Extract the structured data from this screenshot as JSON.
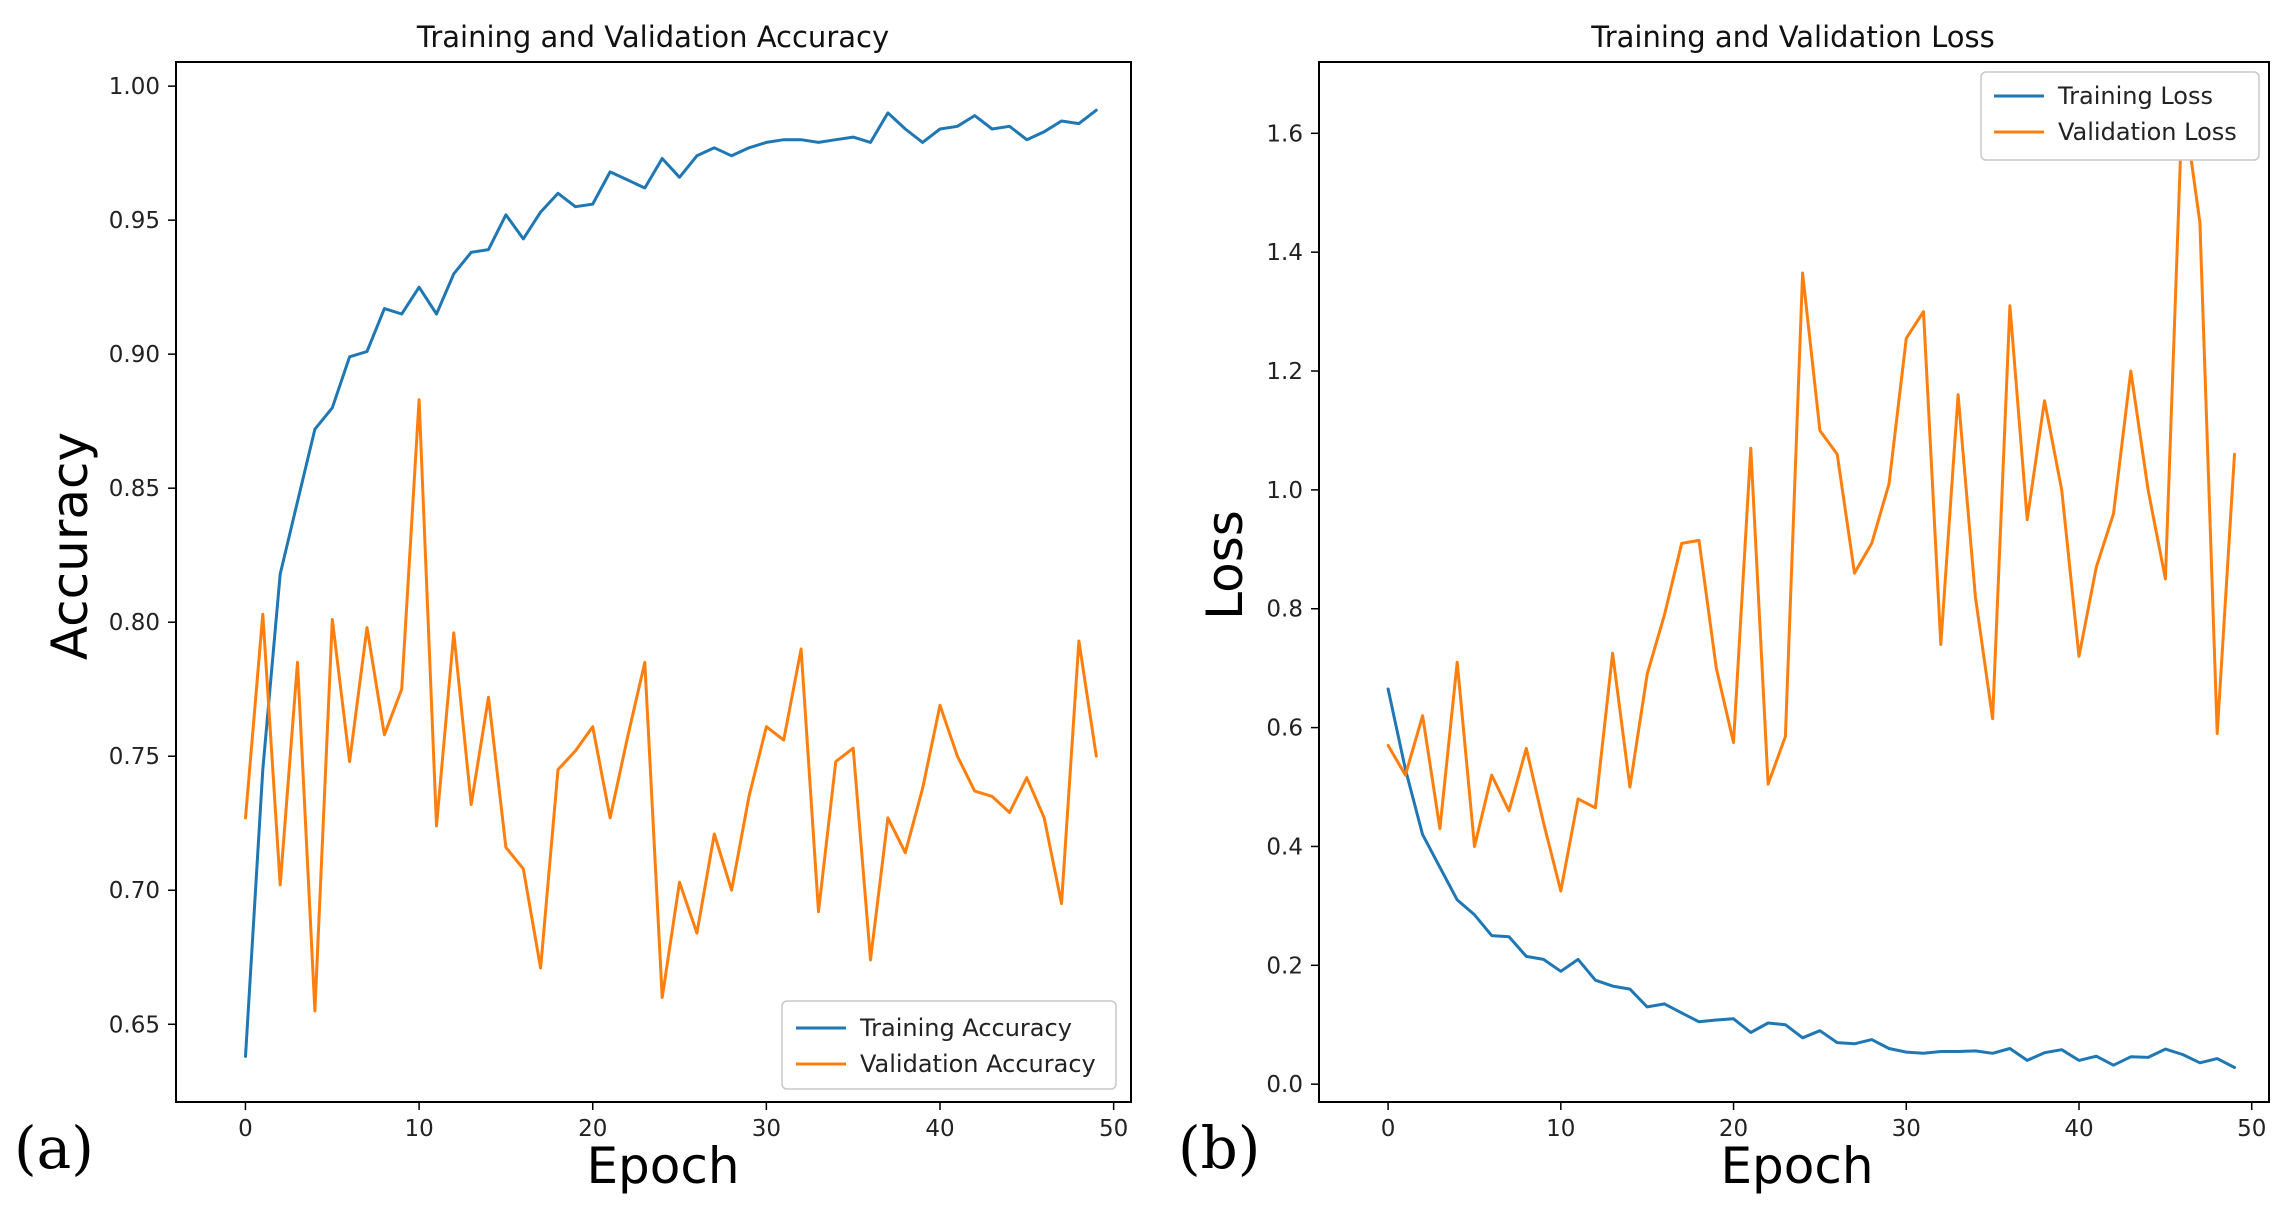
{
  "chart_data": [
    {
      "type": "line",
      "panel_label": "(a)",
      "title": "Training and Validation Accuracy",
      "xlabel": "Epoch",
      "ylabel": "Accuracy",
      "xlim": [
        -4,
        51
      ],
      "ylim": [
        0.621,
        1.009
      ],
      "xticks": [
        0,
        10,
        20,
        30,
        40,
        50
      ],
      "yticks": [
        0.65,
        0.7,
        0.75,
        0.8,
        0.85,
        0.9,
        0.95,
        1.0
      ],
      "ytick_labels": [
        "0.65",
        "0.70",
        "0.75",
        "0.80",
        "0.85",
        "0.90",
        "0.95",
        "1.00"
      ],
      "legend": "lower right",
      "series": [
        {
          "name": "Training Accuracy",
          "color": "#1f77b4",
          "values": [
            0.638,
            0.745,
            0.818,
            0.845,
            0.872,
            0.88,
            0.899,
            0.901,
            0.917,
            0.915,
            0.925,
            0.915,
            0.93,
            0.938,
            0.939,
            0.952,
            0.943,
            0.953,
            0.96,
            0.955,
            0.956,
            0.968,
            0.965,
            0.962,
            0.973,
            0.966,
            0.974,
            0.977,
            0.974,
            0.977,
            0.979,
            0.98,
            0.98,
            0.979,
            0.98,
            0.981,
            0.979,
            0.99,
            0.984,
            0.979,
            0.984,
            0.985,
            0.989,
            0.984,
            0.985,
            0.98,
            0.983,
            0.987,
            0.986,
            0.991
          ]
        },
        {
          "name": "Validation Accuracy",
          "color": "#ff7f0e",
          "values": [
            0.727,
            0.803,
            0.702,
            0.785,
            0.655,
            0.801,
            0.748,
            0.798,
            0.758,
            0.775,
            0.883,
            0.724,
            0.796,
            0.732,
            0.772,
            0.716,
            0.708,
            0.671,
            0.745,
            0.752,
            0.761,
            0.727,
            0.757,
            0.785,
            0.66,
            0.703,
            0.684,
            0.721,
            0.7,
            0.735,
            0.761,
            0.756,
            0.79,
            0.692,
            0.748,
            0.753,
            0.674,
            0.727,
            0.714,
            0.738,
            0.769,
            0.75,
            0.737,
            0.735,
            0.729,
            0.742,
            0.727,
            0.695,
            0.793,
            0.75
          ]
        }
      ]
    },
    {
      "type": "line",
      "panel_label": "(b)",
      "title": "Training and Validation Loss",
      "xlabel": "Epoch",
      "ylabel": "Loss",
      "xlim": [
        -4,
        51
      ],
      "ylim": [
        -0.03,
        1.72
      ],
      "xticks": [
        0,
        10,
        20,
        30,
        40,
        50
      ],
      "yticks": [
        0.0,
        0.2,
        0.4,
        0.6,
        0.8,
        1.0,
        1.2,
        1.4,
        1.6
      ],
      "ytick_labels": [
        "0.0",
        "0.2",
        "0.4",
        "0.6",
        "0.8",
        "1.0",
        "1.2",
        "1.4",
        "1.6"
      ],
      "legend": "upper right",
      "series": [
        {
          "name": "Training Loss",
          "color": "#1f77b4",
          "values": [
            0.665,
            0.53,
            0.42,
            0.365,
            0.31,
            0.285,
            0.25,
            0.248,
            0.215,
            0.21,
            0.19,
            0.21,
            0.175,
            0.165,
            0.16,
            0.13,
            0.135,
            0.12,
            0.105,
            0.108,
            0.11,
            0.087,
            0.103,
            0.1,
            0.078,
            0.09,
            0.07,
            0.068,
            0.075,
            0.06,
            0.054,
            0.052,
            0.055,
            0.055,
            0.056,
            0.052,
            0.06,
            0.04,
            0.053,
            0.058,
            0.04,
            0.047,
            0.032,
            0.046,
            0.045,
            0.059,
            0.05,
            0.036,
            0.043,
            0.028
          ]
        },
        {
          "name": "Validation Loss",
          "color": "#ff7f0e",
          "values": [
            0.57,
            0.52,
            0.62,
            0.43,
            0.71,
            0.4,
            0.52,
            0.46,
            0.565,
            0.44,
            0.325,
            0.48,
            0.465,
            0.725,
            0.5,
            0.69,
            0.79,
            0.91,
            0.915,
            0.7,
            0.575,
            1.07,
            0.505,
            0.585,
            1.365,
            1.1,
            1.06,
            0.86,
            0.91,
            1.01,
            1.255,
            1.3,
            0.74,
            1.16,
            0.82,
            0.615,
            1.31,
            0.95,
            1.15,
            1.0,
            0.72,
            0.87,
            0.96,
            1.2,
            1.0,
            0.85,
            1.66,
            1.45,
            0.59,
            1.06
          ]
        }
      ]
    }
  ]
}
